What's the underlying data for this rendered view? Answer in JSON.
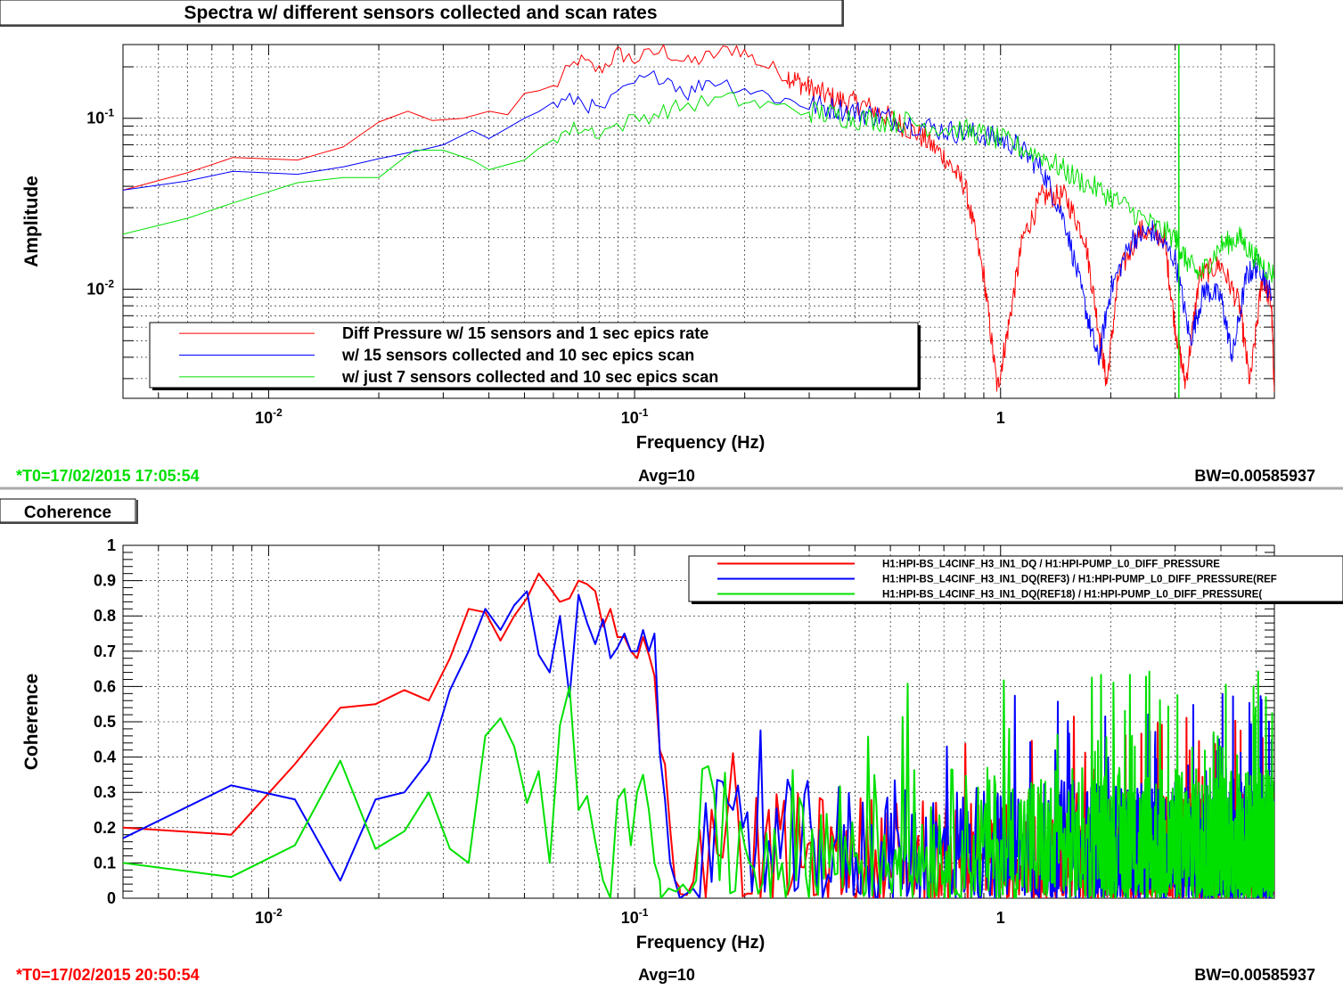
{
  "panels": [
    {
      "title": "Spectra w/ different sensors collected and scan rates",
      "footer": {
        "t0": "*T0=17/02/2015 17:05:54",
        "avg": "Avg=10",
        "bw": "BW=0.00585937",
        "t0_color": "#00e000"
      }
    },
    {
      "title": "Coherence",
      "footer": {
        "t0": "*T0=17/02/2015 20:50:54",
        "avg": "Avg=10",
        "bw": "BW=0.00585937",
        "t0_color": "#ff0000"
      }
    }
  ],
  "chart_data": [
    {
      "type": "line",
      "title": "Spectra w/ different sensors collected and scan rates",
      "xlabel": "Frequency (Hz)",
      "ylabel": "Amplitude",
      "xscale": "log",
      "yscale": "log",
      "xlim": [
        0.004,
        5.6
      ],
      "ylim": [
        0.0023,
        0.27
      ],
      "xticks": [
        {
          "v": 0.01,
          "b": "10",
          "e": "-2"
        },
        {
          "v": 0.1,
          "b": "10",
          "e": "-1"
        },
        {
          "v": 1,
          "b": "1",
          "e": ""
        }
      ],
      "yticks": [
        {
          "v": 0.1,
          "b": "10",
          "e": "-1"
        },
        {
          "v": 0.01,
          "b": "10",
          "e": "-2"
        }
      ],
      "grid": true,
      "legend_position": "bottom-left",
      "series": [
        {
          "name": "Diff Pressure w/ 15 sensors and 1 sec epics rate",
          "color": "#ff0000",
          "points": [
            [
              0.004,
              0.038
            ],
            [
              0.006,
              0.048
            ],
            [
              0.008,
              0.059
            ],
            [
              0.012,
              0.057
            ],
            [
              0.016,
              0.068
            ],
            [
              0.02,
              0.095
            ],
            [
              0.024,
              0.11
            ],
            [
              0.028,
              0.097
            ],
            [
              0.034,
              0.1
            ],
            [
              0.04,
              0.11
            ],
            [
              0.045,
              0.105
            ],
            [
              0.05,
              0.14
            ],
            [
              0.06,
              0.15
            ],
            [
              0.07,
              0.22
            ],
            [
              0.08,
              0.19
            ],
            [
              0.09,
              0.24
            ],
            [
              0.1,
              0.22
            ],
            [
              0.12,
              0.25
            ],
            [
              0.14,
              0.21
            ],
            [
              0.16,
              0.23
            ],
            [
              0.19,
              0.26
            ],
            [
              0.22,
              0.21
            ],
            [
              0.26,
              0.18
            ],
            [
              0.3,
              0.15
            ],
            [
              0.35,
              0.13
            ],
            [
              0.42,
              0.12
            ],
            [
              0.5,
              0.1
            ],
            [
              0.6,
              0.08
            ],
            [
              0.7,
              0.06
            ],
            [
              0.8,
              0.04
            ],
            [
              0.9,
              0.012
            ],
            [
              0.98,
              0.0026
            ],
            [
              1.05,
              0.006
            ],
            [
              1.15,
              0.02
            ],
            [
              1.3,
              0.035
            ],
            [
              1.5,
              0.035
            ],
            [
              1.7,
              0.02
            ],
            [
              1.85,
              0.006
            ],
            [
              1.95,
              0.0028
            ],
            [
              2.1,
              0.012
            ],
            [
              2.4,
              0.022
            ],
            [
              2.8,
              0.02
            ],
            [
              3.0,
              0.006
            ],
            [
              3.2,
              0.0028
            ],
            [
              3.5,
              0.012
            ],
            [
              4.0,
              0.014
            ],
            [
              4.5,
              0.008
            ],
            [
              4.8,
              0.0028
            ],
            [
              5.2,
              0.012
            ],
            [
              5.5,
              0.008
            ],
            [
              5.6,
              0.0025
            ]
          ]
        },
        {
          "name": "w/ 15 sensors collected and 10 sec epics scan",
          "color": "#0000ff",
          "points": [
            [
              0.004,
              0.038
            ],
            [
              0.006,
              0.043
            ],
            [
              0.008,
              0.049
            ],
            [
              0.012,
              0.047
            ],
            [
              0.016,
              0.052
            ],
            [
              0.02,
              0.058
            ],
            [
              0.026,
              0.065
            ],
            [
              0.03,
              0.07
            ],
            [
              0.036,
              0.085
            ],
            [
              0.04,
              0.076
            ],
            [
              0.05,
              0.1
            ],
            [
              0.06,
              0.12
            ],
            [
              0.07,
              0.13
            ],
            [
              0.08,
              0.11
            ],
            [
              0.1,
              0.16
            ],
            [
              0.12,
              0.18
            ],
            [
              0.14,
              0.14
            ],
            [
              0.16,
              0.17
            ],
            [
              0.2,
              0.15
            ],
            [
              0.25,
              0.13
            ],
            [
              0.3,
              0.12
            ],
            [
              0.4,
              0.11
            ],
            [
              0.5,
              0.1
            ],
            [
              0.7,
              0.085
            ],
            [
              0.9,
              0.08
            ],
            [
              1.1,
              0.07
            ],
            [
              1.3,
              0.05
            ],
            [
              1.5,
              0.025
            ],
            [
              1.7,
              0.008
            ],
            [
              1.85,
              0.0038
            ],
            [
              2.0,
              0.01
            ],
            [
              2.3,
              0.02
            ],
            [
              2.6,
              0.022
            ],
            [
              3.0,
              0.015
            ],
            [
              3.3,
              0.005
            ],
            [
              3.6,
              0.01
            ],
            [
              4.0,
              0.009
            ],
            [
              4.3,
              0.004
            ],
            [
              4.7,
              0.012
            ],
            [
              5.1,
              0.014
            ],
            [
              5.5,
              0.009
            ]
          ]
        },
        {
          "name": "w/ just 7 sensors collected and 10 sec epics scan",
          "color": "#00e000",
          "points": [
            [
              0.004,
              0.021
            ],
            [
              0.006,
              0.026
            ],
            [
              0.008,
              0.032
            ],
            [
              0.012,
              0.042
            ],
            [
              0.016,
              0.045
            ],
            [
              0.02,
              0.045
            ],
            [
              0.025,
              0.065
            ],
            [
              0.03,
              0.065
            ],
            [
              0.036,
              0.057
            ],
            [
              0.04,
              0.05
            ],
            [
              0.05,
              0.057
            ],
            [
              0.06,
              0.078
            ],
            [
              0.07,
              0.088
            ],
            [
              0.08,
              0.083
            ],
            [
              0.1,
              0.098
            ],
            [
              0.12,
              0.11
            ],
            [
              0.14,
              0.12
            ],
            [
              0.18,
              0.13
            ],
            [
              0.22,
              0.12
            ],
            [
              0.3,
              0.11
            ],
            [
              0.4,
              0.1
            ],
            [
              0.55,
              0.095
            ],
            [
              0.8,
              0.085
            ],
            [
              1.0,
              0.075
            ],
            [
              1.3,
              0.06
            ],
            [
              1.6,
              0.045
            ],
            [
              2.0,
              0.035
            ],
            [
              2.5,
              0.025
            ],
            [
              3.0,
              0.02
            ],
            [
              3.2,
              0.015
            ],
            [
              3.5,
              0.012
            ],
            [
              4.0,
              0.018
            ],
            [
              4.5,
              0.02
            ],
            [
              5.0,
              0.015
            ],
            [
              5.6,
              0.012
            ]
          ]
        }
      ],
      "spike": {
        "x": 3.07,
        "color": "#00e000"
      }
    },
    {
      "type": "line",
      "title": "Coherence",
      "xlabel": "Frequency (Hz)",
      "ylabel": "Coherence",
      "xscale": "log",
      "yscale": "linear",
      "xlim": [
        0.004,
        5.6
      ],
      "ylim": [
        0,
        1
      ],
      "xticks": [
        {
          "v": 0.01,
          "b": "10",
          "e": "-2"
        },
        {
          "v": 0.1,
          "b": "10",
          "e": "-1"
        },
        {
          "v": 1,
          "b": "1",
          "e": ""
        }
      ],
      "yticks": [
        0,
        0.1,
        0.2,
        0.3,
        0.4,
        0.5,
        0.6,
        0.7,
        0.8,
        0.9,
        1
      ],
      "grid": true,
      "legend_position": "top-right",
      "series": [
        {
          "name": "H1:HPI-BS_L4CINF_H3_IN1_DQ / H1:HPI-PUMP_L0_DIFF_PRESSURE",
          "color": "#ff0000",
          "points": [
            [
              0.004,
              0.2
            ],
            [
              0.0079,
              0.18
            ],
            [
              0.0118,
              0.38
            ],
            [
              0.0157,
              0.54
            ],
            [
              0.0196,
              0.55
            ],
            [
              0.0235,
              0.59
            ],
            [
              0.0274,
              0.56
            ],
            [
              0.0313,
              0.68
            ],
            [
              0.0352,
              0.82
            ],
            [
              0.0391,
              0.81
            ],
            [
              0.043,
              0.73
            ],
            [
              0.0469,
              0.8
            ],
            [
              0.0508,
              0.85
            ],
            [
              0.0547,
              0.92
            ],
            [
              0.0586,
              0.88
            ],
            [
              0.0625,
              0.84
            ],
            [
              0.0664,
              0.85
            ],
            [
              0.0703,
              0.9
            ],
            [
              0.0742,
              0.89
            ],
            [
              0.0781,
              0.87
            ],
            [
              0.082,
              0.77
            ],
            [
              0.0859,
              0.82
            ],
            [
              0.0898,
              0.74
            ],
            [
              0.0938,
              0.74
            ],
            [
              0.0977,
              0.7
            ],
            [
              0.1016,
              0.68
            ],
            [
              0.1055,
              0.74
            ],
            [
              0.1094,
              0.69
            ],
            [
              0.1133,
              0.63
            ],
            [
              0.1172,
              0.42
            ],
            [
              0.1211,
              0.38
            ],
            [
              0.125,
              0.2
            ],
            [
              0.1289,
              0.05
            ],
            [
              0.1328,
              0.03
            ]
          ],
          "noise_from": 0.133,
          "noise_range": [
            0.0,
            0.4
          ]
        },
        {
          "name": "H1:HPI-BS_L4CINF_H3_IN1_DQ(REF3) / H1:HPI-PUMP_L0_DIFF_PRESSURE(REF",
          "color": "#0000ff",
          "points": [
            [
              0.004,
              0.17
            ],
            [
              0.0079,
              0.32
            ],
            [
              0.0118,
              0.28
            ],
            [
              0.0157,
              0.05
            ],
            [
              0.0196,
              0.28
            ],
            [
              0.0235,
              0.3
            ],
            [
              0.0274,
              0.39
            ],
            [
              0.0313,
              0.59
            ],
            [
              0.0352,
              0.7
            ],
            [
              0.0391,
              0.82
            ],
            [
              0.043,
              0.76
            ],
            [
              0.0469,
              0.83
            ],
            [
              0.0508,
              0.87
            ],
            [
              0.0547,
              0.69
            ],
            [
              0.0586,
              0.64
            ],
            [
              0.0625,
              0.8
            ],
            [
              0.0664,
              0.57
            ],
            [
              0.0703,
              0.86
            ],
            [
              0.0742,
              0.78
            ],
            [
              0.0781,
              0.72
            ],
            [
              0.082,
              0.79
            ],
            [
              0.0859,
              0.68
            ],
            [
              0.0898,
              0.71
            ],
            [
              0.0938,
              0.75
            ],
            [
              0.0977,
              0.7
            ],
            [
              0.1016,
              0.7
            ],
            [
              0.1055,
              0.76
            ],
            [
              0.1094,
              0.7
            ],
            [
              0.1133,
              0.75
            ],
            [
              0.1172,
              0.41
            ],
            [
              0.1211,
              0.28
            ],
            [
              0.125,
              0.1
            ],
            [
              0.1289,
              0.05
            ]
          ],
          "noise_from": 0.133,
          "noise_range": [
            0.0,
            0.45
          ]
        },
        {
          "name": "H1:HPI-BS_L4CINF_H3_IN1_DQ(REF18) / H1:HPI-PUMP_L0_DIFF_PRESSURE(",
          "color": "#00e000",
          "points": [
            [
              0.004,
              0.1
            ],
            [
              0.0079,
              0.06
            ],
            [
              0.0118,
              0.15
            ],
            [
              0.0157,
              0.39
            ],
            [
              0.0196,
              0.14
            ],
            [
              0.0235,
              0.19
            ],
            [
              0.0274,
              0.3
            ],
            [
              0.0313,
              0.14
            ],
            [
              0.0352,
              0.1
            ],
            [
              0.0391,
              0.46
            ],
            [
              0.043,
              0.51
            ],
            [
              0.0469,
              0.43
            ],
            [
              0.0508,
              0.27
            ],
            [
              0.0547,
              0.36
            ],
            [
              0.0586,
              0.1
            ],
            [
              0.0625,
              0.49
            ],
            [
              0.0664,
              0.6
            ],
            [
              0.0703,
              0.25
            ],
            [
              0.0742,
              0.29
            ],
            [
              0.0781,
              0.16
            ],
            [
              0.082,
              0.05
            ],
            [
              0.0859,
              0.0
            ],
            [
              0.0898,
              0.28
            ],
            [
              0.0938,
              0.31
            ],
            [
              0.0977,
              0.15
            ],
            [
              0.1016,
              0.3
            ],
            [
              0.1055,
              0.35
            ],
            [
              0.1094,
              0.25
            ],
            [
              0.1133,
              0.1
            ],
            [
              0.1172,
              0.05
            ]
          ],
          "noise_from": 0.118,
          "noise_range": [
            0.0,
            0.5
          ]
        }
      ]
    }
  ]
}
